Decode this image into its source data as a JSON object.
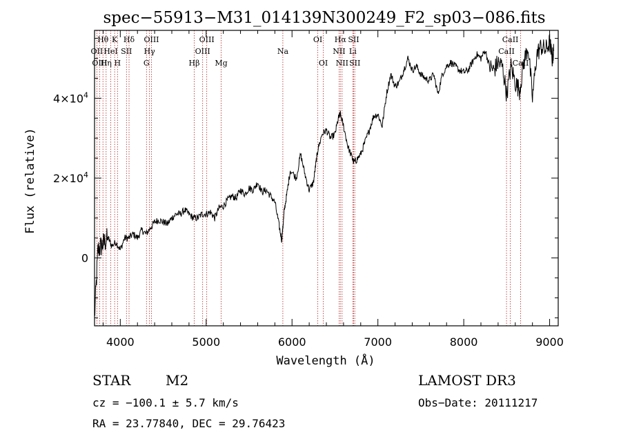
{
  "chart_data": {
    "type": "line",
    "title": "spec−55913−M31_014139N300249_F2_sp03−086.fits",
    "xlabel": "Wavelength (Å)",
    "ylabel": "Flux (relative)",
    "xlim": [
      3700,
      9100
    ],
    "ylim": [
      -17000,
      57000
    ],
    "x_ticks": [
      {
        "value": 4000,
        "label": "4000"
      },
      {
        "value": 5000,
        "label": "5000"
      },
      {
        "value": 6000,
        "label": "6000"
      },
      {
        "value": 7000,
        "label": "7000"
      },
      {
        "value": 8000,
        "label": "8000"
      },
      {
        "value": 9000,
        "label": "9000"
      }
    ],
    "y_ticks": [
      {
        "value": 0,
        "label": "0"
      },
      {
        "value": 20000,
        "label": "2×10",
        "exp": "4"
      },
      {
        "value": 40000,
        "label": "4×10",
        "exp": "4"
      }
    ],
    "series": [
      {
        "name": "spectrum",
        "x": [
          3700,
          3740,
          3780,
          3820,
          3860,
          3900,
          3950,
          4000,
          4050,
          4100,
          4150,
          4200,
          4250,
          4300,
          4350,
          4400,
          4450,
          4500,
          4550,
          4600,
          4650,
          4700,
          4750,
          4800,
          4850,
          4900,
          4950,
          5000,
          5050,
          5100,
          5150,
          5200,
          5250,
          5300,
          5350,
          5400,
          5450,
          5500,
          5550,
          5600,
          5650,
          5700,
          5750,
          5800,
          5850,
          5880,
          5895,
          5910,
          5940,
          5980,
          6050,
          6100,
          6150,
          6200,
          6250,
          6280,
          6300,
          6350,
          6400,
          6450,
          6500,
          6540,
          6563,
          6600,
          6650,
          6700,
          6720,
          6750,
          6800,
          6850,
          6900,
          6950,
          7000,
          7050,
          7100,
          7150,
          7200,
          7250,
          7300,
          7350,
          7400,
          7450,
          7500,
          7550,
          7600,
          7650,
          7700,
          7750,
          7800,
          7850,
          7900,
          7950,
          8000,
          8050,
          8100,
          8150,
          8200,
          8250,
          8300,
          8350,
          8400,
          8450,
          8500,
          8550,
          8600,
          8650,
          8700,
          8750,
          8800,
          8850,
          8900,
          8950,
          9000,
          9030,
          9050
        ],
        "values": [
          -15000,
          2000,
          3000,
          4000,
          5000,
          3000,
          4000,
          2000,
          5000,
          5000,
          6000,
          5000,
          7000,
          6000,
          7500,
          9000,
          9500,
          9000,
          8500,
          10000,
          11000,
          11000,
          12000,
          11000,
          10000,
          10000,
          11000,
          11000,
          11500,
          10000,
          12500,
          13000,
          14500,
          15500,
          15000,
          17000,
          16000,
          17500,
          17000,
          19000,
          16500,
          17000,
          15500,
          14000,
          8000,
          4500,
          8000,
          12000,
          16000,
          22000,
          20000,
          26000,
          21000,
          17000,
          19000,
          24000,
          27000,
          31000,
          32000,
          30000,
          31000,
          35000,
          36000,
          33000,
          28000,
          25000,
          24000,
          24500,
          26000,
          29000,
          32000,
          35500,
          36000,
          33000,
          41000,
          46000,
          43000,
          44000,
          47000,
          50000,
          47000,
          48000,
          46000,
          45000,
          44500,
          46000,
          41000,
          46000,
          48000,
          49000,
          48000,
          47000,
          46500,
          47000,
          49000,
          51000,
          50000,
          52000,
          48000,
          47000,
          49000,
          48000,
          41000,
          48000,
          44000,
          42000,
          49000,
          53000,
          40000,
          51000,
          53000,
          52000,
          54000,
          50000,
          52000
        ]
      }
    ],
    "lines": [
      {
        "name": "Hθ",
        "wave": 3798,
        "row": 0
      },
      {
        "name": "K",
        "wave": 3934,
        "row": 0
      },
      {
        "name": "Hδ",
        "wave": 4102,
        "row": 0
      },
      {
        "name": "OIII",
        "wave": 4363,
        "row": 0
      },
      {
        "name": "OIII",
        "wave": 5007,
        "row": 0
      },
      {
        "name": "OI",
        "wave": 6300,
        "row": 0
      },
      {
        "name": "Hα",
        "wave": 6563,
        "row": 0
      },
      {
        "name": "SII",
        "wave": 6717,
        "row": 0
      },
      {
        "name": "CaII",
        "wave": 8542,
        "row": 0
      },
      {
        "name": "OII",
        "wave": 3727,
        "row": 1
      },
      {
        "name": "HeI",
        "wave": 3889,
        "row": 1
      },
      {
        "name": "SII",
        "wave": 4072,
        "row": 1
      },
      {
        "name": "Hγ",
        "wave": 4340,
        "row": 1
      },
      {
        "name": "OIII",
        "wave": 4959,
        "row": 1
      },
      {
        "name": "Na",
        "wave": 5893,
        "row": 1
      },
      {
        "name": "NII",
        "wave": 6548,
        "row": 1
      },
      {
        "name": "Li",
        "wave": 6708,
        "row": 1
      },
      {
        "name": "CaII",
        "wave": 8498,
        "row": 1
      },
      {
        "name": "OIII",
        "wave": 3760,
        "row": 2
      },
      {
        "name": "Hη",
        "wave": 3835,
        "row": 2
      },
      {
        "name": "H",
        "wave": 3968,
        "row": 2
      },
      {
        "name": "G",
        "wave": 4305,
        "row": 2
      },
      {
        "name": "Hβ",
        "wave": 4861,
        "row": 2
      },
      {
        "name": "Mg",
        "wave": 5175,
        "row": 2
      },
      {
        "name": "OI",
        "wave": 6364,
        "row": 2
      },
      {
        "name": "NII",
        "wave": 6583,
        "row": 2
      },
      {
        "name": "SII",
        "wave": 6731,
        "row": 2
      },
      {
        "name": "CaII",
        "wave": 8662,
        "row": 2
      }
    ]
  },
  "footer": {
    "object_class": "STAR",
    "subclass": "M2",
    "survey": "LAMOST DR3",
    "redshift": "cz = −100.1 ± 5.7 km/s",
    "obs_date": "Obs−Date: 20111217",
    "coords": "RA =  23.77840, DEC =  29.76423"
  },
  "colors": {
    "axis": "#000000",
    "spectrum": "#000000",
    "line_marker": "#b22222"
  }
}
